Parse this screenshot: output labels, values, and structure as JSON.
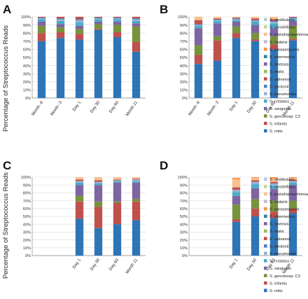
{
  "figure": {
    "shared_ylabel": "Percentage of Streptococcus Reads"
  },
  "legend": [
    {
      "name": "S. vestibularis",
      "color": "#b8cce4"
    },
    {
      "name": "S. constellatus",
      "color": "#c4d79b"
    },
    {
      "name": "S. pseudopneumoniae",
      "color": "#fac090"
    },
    {
      "name": "S. mutans",
      "color": "#c5b9d9"
    },
    {
      "name": "S. parasanguinis",
      "color": "#f79646"
    },
    {
      "name": "S. intermedius",
      "color": "#31859c"
    },
    {
      "name": "S. sinensis",
      "color": "#8064a2"
    },
    {
      "name": "S. oralis",
      "color": "#9bbb59"
    },
    {
      "name": "S. salivarius",
      "color": "#c0504d"
    },
    {
      "name": "S. gordonii",
      "color": "#4f81bd"
    },
    {
      "name": "S. pneumoniae",
      "color": "#93b3d7"
    },
    {
      "name": "S. cristatus",
      "color": "#4bacc6"
    },
    {
      "name": "S. sanguinis",
      "color": "#7f64a2"
    },
    {
      "name": "S. genomosp. C3",
      "color": "#77933c"
    },
    {
      "name": "S. infantis",
      "color": "#c0504d"
    },
    {
      "name": "S. mitis",
      "color": "#2e75b6"
    }
  ],
  "chart_data": [
    {
      "panel": "A",
      "type": "bar",
      "stacked": true,
      "categories": [
        "Month -6",
        "Month -3",
        "Day 1",
        "Day 30",
        "Day 60",
        "Month 11"
      ],
      "ylim": [
        0,
        100
      ],
      "yticks": [
        "0%",
        "10%",
        "20%",
        "30%",
        "40%",
        "50%",
        "60%",
        "70%",
        "80%",
        "90%",
        "100%"
      ],
      "series": [
        {
          "name": "S. mitis",
          "values": [
            70,
            74,
            72,
            84,
            75,
            57
          ]
        },
        {
          "name": "S. infantis",
          "values": [
            10,
            7,
            7,
            1,
            6,
            12
          ]
        },
        {
          "name": "S. genomosp. C3",
          "values": [
            9,
            6,
            6,
            6,
            9,
            19
          ]
        },
        {
          "name": "S. sanguinis",
          "values": [
            5,
            4,
            4,
            3,
            4,
            4
          ]
        },
        {
          "name": "S. cristatus",
          "values": [
            3,
            4,
            4,
            3,
            3,
            3
          ]
        },
        {
          "name": "S. pneumoniae",
          "values": [
            1,
            2,
            3,
            1,
            1,
            2
          ]
        },
        {
          "name": "S. gordonii",
          "values": [
            1,
            1,
            1,
            1,
            1,
            1
          ]
        },
        {
          "name": "S. salivarius",
          "values": [
            1,
            2,
            3,
            1,
            1,
            2
          ]
        }
      ]
    },
    {
      "panel": "B",
      "type": "bar",
      "stacked": true,
      "categories": [
        "Month -6",
        "Month -3",
        "Day 1",
        "Day 30",
        "Day 60",
        "Month 11"
      ],
      "ylim": [
        0,
        100
      ],
      "yticks": [
        "0%",
        "10%",
        "20%",
        "30%",
        "40%",
        "50%",
        "60%",
        "70%",
        "80%",
        "90%",
        "100%"
      ],
      "series": [
        {
          "name": "S. mitis",
          "values": [
            42,
            46,
            74,
            70,
            60,
            71
          ]
        },
        {
          "name": "S. infantis",
          "values": [
            11,
            25,
            6,
            2,
            6,
            2
          ]
        },
        {
          "name": "S. genomosp. C3",
          "values": [
            12,
            5,
            8,
            8,
            10,
            16
          ]
        },
        {
          "name": "S. sanguinis",
          "values": [
            21,
            16,
            6,
            10,
            10,
            6
          ]
        },
        {
          "name": "S. cristatus",
          "values": [
            3,
            3,
            2,
            4,
            6,
            2
          ]
        },
        {
          "name": "S. pneumoniae",
          "values": [
            1,
            1,
            1,
            1,
            2,
            1
          ]
        },
        {
          "name": "S. gordonii",
          "values": [
            1,
            1,
            1,
            1,
            1,
            1
          ]
        },
        {
          "name": "S. salivarius",
          "values": [
            5,
            1,
            1,
            2,
            2,
            1
          ]
        },
        {
          "name": "S. pseudopneumoniae",
          "values": [
            4,
            2,
            1,
            2,
            3,
            0
          ]
        }
      ]
    },
    {
      "panel": "C",
      "type": "bar",
      "stacked": true,
      "categories": [
        "",
        "",
        "Day 1",
        "Day 30",
        "Day 60",
        "Month 11"
      ],
      "ylim": [
        0,
        100
      ],
      "yticks": [
        "0%",
        "10%",
        "20%",
        "30%",
        "40%",
        "50%",
        "60%",
        "70%",
        "80%",
        "90%",
        "100%"
      ],
      "series": [
        {
          "name": "S. mitis",
          "values": [
            0,
            0,
            47,
            35,
            40,
            45
          ]
        },
        {
          "name": "S. infantis",
          "values": [
            0,
            0,
            22,
            27,
            27,
            24
          ]
        },
        {
          "name": "S. genomosp. C3",
          "values": [
            0,
            0,
            7,
            7,
            2,
            3
          ]
        },
        {
          "name": "S. sanguinis",
          "values": [
            0,
            0,
            14,
            21,
            24,
            21
          ]
        },
        {
          "name": "S. cristatus",
          "values": [
            0,
            0,
            3,
            2,
            2,
            2
          ]
        },
        {
          "name": "S. pneumoniae",
          "values": [
            0,
            0,
            2,
            2,
            1,
            2
          ]
        },
        {
          "name": "S. salivarius",
          "values": [
            0,
            0,
            2,
            2,
            1,
            1
          ]
        },
        {
          "name": "S. pseudopneumoniae",
          "values": [
            0,
            0,
            3,
            4,
            3,
            2
          ]
        }
      ]
    },
    {
      "panel": "D",
      "type": "bar",
      "stacked": true,
      "categories": [
        "",
        "",
        "Day 1",
        "Day 30",
        "Day 60",
        "Month 11"
      ],
      "ylim": [
        0,
        100
      ],
      "yticks": [
        "0%",
        "10%",
        "20%",
        "30%",
        "40%",
        "50%",
        "60%",
        "70%",
        "80%",
        "90%",
        "100%"
      ],
      "series": [
        {
          "name": "S. mitis",
          "values": [
            0,
            0,
            43,
            50,
            48,
            54
          ]
        },
        {
          "name": "S. infantis",
          "values": [
            0,
            0,
            3,
            10,
            8,
            6
          ]
        },
        {
          "name": "S. genomosp. C3",
          "values": [
            0,
            0,
            19,
            12,
            14,
            10
          ]
        },
        {
          "name": "S. sanguinis",
          "values": [
            0,
            0,
            11,
            14,
            15,
            20
          ]
        },
        {
          "name": "S. cristatus",
          "values": [
            0,
            0,
            5,
            5,
            4,
            3
          ]
        },
        {
          "name": "S. pneumoniae",
          "values": [
            0,
            0,
            3,
            3,
            3,
            2
          ]
        },
        {
          "name": "S. salivarius",
          "values": [
            0,
            0,
            3,
            2,
            2,
            2
          ]
        },
        {
          "name": "S. pseudopneumoniae",
          "values": [
            0,
            0,
            10,
            3,
            4,
            2
          ]
        },
        {
          "name": "S. parasanguinis",
          "values": [
            0,
            0,
            2,
            1,
            2,
            1
          ]
        }
      ]
    }
  ]
}
